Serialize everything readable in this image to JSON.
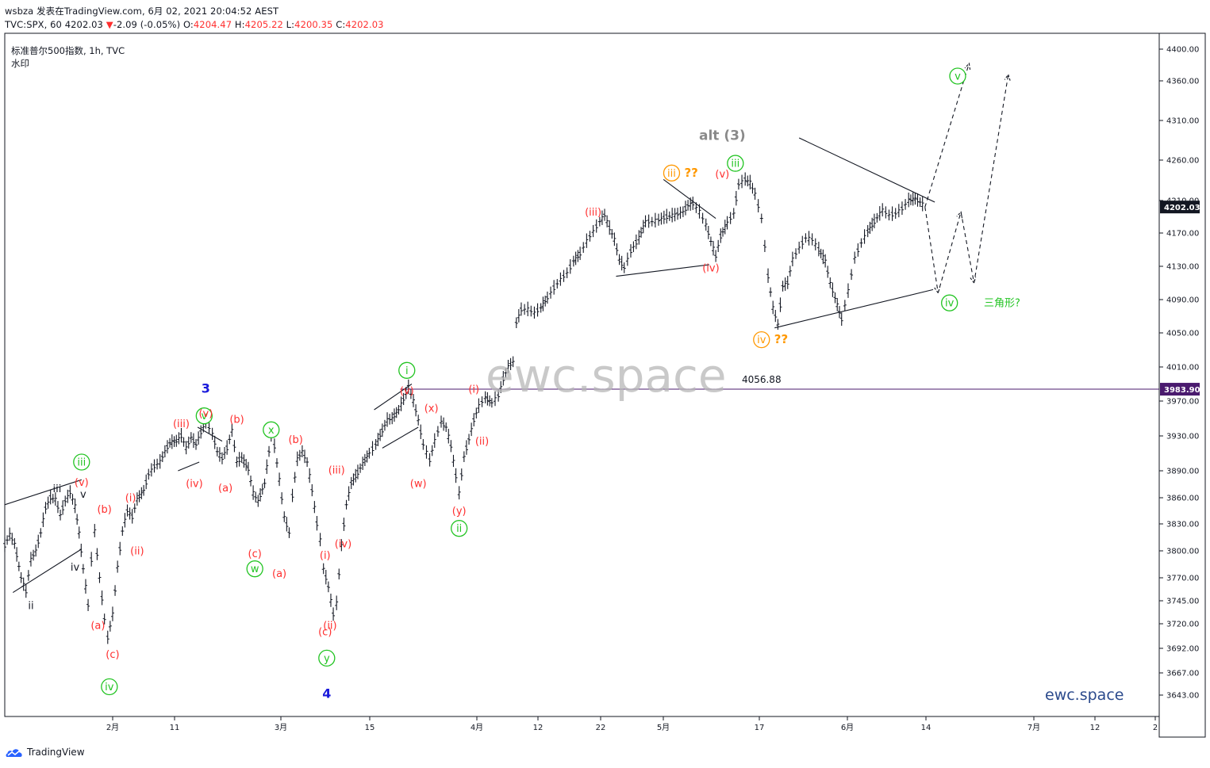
{
  "header": {
    "line1": "wsbza 发表在TradingView.com, 6月 02, 2021 20:04:52 AEST",
    "symbol": "TVC:SPX, 60",
    "last": "4202.03",
    "change": "-2.09 (-0.05%)",
    "o_label": "O:",
    "o_value": "4204.47",
    "h_label": "H:",
    "h_value": "4205.22",
    "l_label": "L:",
    "l_value": "4200.35",
    "c_label": "C:",
    "c_value": "4202.03"
  },
  "legend": {
    "title": "标准普尔500指数, 1h, TVC",
    "watermark_label": "水印"
  },
  "watermark": "ewc.space",
  "brand_text": "ewc.space",
  "footer": {
    "logo_text": "TradingView"
  },
  "colors": {
    "red": "#ff2e2e",
    "green": "#22c422",
    "orange": "#ff9800",
    "blue": "#1a1adb",
    "gray": "#8a8a8a",
    "candle": "#131722",
    "hline": "#4a1a6e"
  },
  "chart_data": {
    "type": "line",
    "title": "标准普尔500指数, 1h, TVC",
    "price_axis_ticks": [
      "4400.00",
      "4360.00",
      "4310.00",
      "4260.00",
      "4210.00",
      "4170.00",
      "4130.00",
      "4090.00",
      "4050.00",
      "4010.00",
      "3970.00",
      "3930.00",
      "3890.00",
      "3860.00",
      "3830.00",
      "3800.00",
      "3770.00",
      "3745.00",
      "3720.00",
      "3692.00",
      "3667.00",
      "3643.00"
    ],
    "price_axis_values": [
      4400,
      4360,
      4310,
      4260,
      4210,
      4170,
      4130,
      4090,
      4050,
      4010,
      3970,
      3930,
      3890,
      3860,
      3830,
      3800,
      3770,
      3745,
      3720,
      3692,
      3667,
      3643
    ],
    "time_axis_ticks": [
      "2月",
      "11",
      "3月",
      "15",
      "4月",
      "12",
      "22",
      "5月",
      "17",
      "6月",
      "14",
      "7月",
      "12",
      "2"
    ],
    "current_price_label": "4202.03",
    "current_price": 4202.03,
    "hline_label": "3983.90",
    "hline_price": 3983.9,
    "low_annotation": "4056.88",
    "low_price": 4056.88,
    "price_path": [
      [
        0.0,
        3806
      ],
      [
        0.6,
        3818
      ],
      [
        1.2,
        3808
      ],
      [
        2.0,
        3770
      ],
      [
        2.6,
        3755
      ],
      [
        3.2,
        3790
      ],
      [
        3.8,
        3800
      ],
      [
        4.4,
        3820
      ],
      [
        5.0,
        3848
      ],
      [
        5.6,
        3860
      ],
      [
        6.2,
        3858
      ],
      [
        6.8,
        3840
      ],
      [
        7.4,
        3856
      ],
      [
        8.0,
        3866
      ],
      [
        8.6,
        3850
      ],
      [
        9.1,
        3820
      ],
      [
        9.6,
        3780
      ],
      [
        10.2,
        3740
      ],
      [
        10.6,
        3790
      ],
      [
        11.0,
        3822
      ],
      [
        11.6,
        3770
      ],
      [
        12.2,
        3725
      ],
      [
        12.6,
        3704
      ],
      [
        13.2,
        3730
      ],
      [
        13.8,
        3782
      ],
      [
        14.4,
        3822
      ],
      [
        15.0,
        3845
      ],
      [
        15.6,
        3838
      ],
      [
        16.2,
        3858
      ],
      [
        17.0,
        3868
      ],
      [
        17.6,
        3886
      ],
      [
        18.3,
        3895
      ],
      [
        19.0,
        3900
      ],
      [
        19.6,
        3912
      ],
      [
        20.2,
        3922
      ],
      [
        21.0,
        3924
      ],
      [
        21.6,
        3930
      ],
      [
        22.2,
        3916
      ],
      [
        22.8,
        3928
      ],
      [
        23.4,
        3920
      ],
      [
        24.0,
        3934
      ],
      [
        24.6,
        3946
      ],
      [
        25.4,
        3932
      ],
      [
        26.0,
        3912
      ],
      [
        26.6,
        3904
      ],
      [
        27.2,
        3916
      ],
      [
        27.8,
        3936
      ],
      [
        28.4,
        3900
      ],
      [
        29.0,
        3905
      ],
      [
        29.8,
        3892
      ],
      [
        30.4,
        3865
      ],
      [
        31.0,
        3856
      ],
      [
        31.8,
        3876
      ],
      [
        32.6,
        3930
      ],
      [
        33.0,
        3918
      ],
      [
        33.6,
        3880
      ],
      [
        34.2,
        3838
      ],
      [
        34.8,
        3820
      ],
      [
        35.2,
        3862
      ],
      [
        35.8,
        3903
      ],
      [
        36.4,
        3912
      ],
      [
        37.0,
        3900
      ],
      [
        37.6,
        3868
      ],
      [
        38.2,
        3830
      ],
      [
        38.6,
        3812
      ],
      [
        39.0,
        3780
      ],
      [
        39.6,
        3760
      ],
      [
        40.2,
        3730
      ],
      [
        40.6,
        3742
      ],
      [
        41.2,
        3806
      ],
      [
        41.8,
        3852
      ],
      [
        42.4,
        3876
      ],
      [
        43.2,
        3888
      ],
      [
        43.8,
        3898
      ],
      [
        44.6,
        3910
      ],
      [
        45.4,
        3920
      ],
      [
        46.2,
        3936
      ],
      [
        46.8,
        3948
      ],
      [
        47.4,
        3950
      ],
      [
        48.2,
        3960
      ],
      [
        48.8,
        3972
      ],
      [
        49.4,
        3986
      ],
      [
        50.0,
        3970
      ],
      [
        50.6,
        3948
      ],
      [
        51.2,
        3920
      ],
      [
        52.0,
        3902
      ],
      [
        52.6,
        3924
      ],
      [
        53.4,
        3946
      ],
      [
        54.0,
        3940
      ],
      [
        54.6,
        3918
      ],
      [
        55.2,
        3884
      ],
      [
        55.6,
        3865
      ],
      [
        56.2,
        3906
      ],
      [
        56.8,
        3926
      ],
      [
        57.4,
        3948
      ],
      [
        58.0,
        3964
      ],
      [
        58.8,
        3974
      ],
      [
        59.6,
        3968
      ],
      [
        60.4,
        3976
      ],
      [
        61.0,
        3996
      ],
      [
        61.6,
        4010
      ],
      [
        62.2,
        4016
      ],
      [
        62.6,
        4062
      ],
      [
        63.2,
        4078
      ],
      [
        64.0,
        4078
      ],
      [
        64.8,
        4074
      ],
      [
        65.6,
        4080
      ],
      [
        66.4,
        4092
      ],
      [
        67.2,
        4104
      ],
      [
        68.0,
        4114
      ],
      [
        68.8,
        4122
      ],
      [
        69.6,
        4136
      ],
      [
        70.4,
        4145
      ],
      [
        71.2,
        4160
      ],
      [
        72.0,
        4172
      ],
      [
        72.8,
        4184
      ],
      [
        73.4,
        4192
      ],
      [
        74.0,
        4176
      ],
      [
        74.6,
        4162
      ],
      [
        75.2,
        4138
      ],
      [
        75.8,
        4128
      ],
      [
        76.6,
        4148
      ],
      [
        77.6,
        4164
      ],
      [
        78.4,
        4184
      ],
      [
        79.2,
        4184
      ],
      [
        80.0,
        4186
      ],
      [
        81.0,
        4190
      ],
      [
        82.0,
        4192
      ],
      [
        83.0,
        4196
      ],
      [
        83.6,
        4204
      ],
      [
        84.2,
        4206
      ],
      [
        85.0,
        4196
      ],
      [
        85.8,
        4180
      ],
      [
        86.4,
        4160
      ],
      [
        87.0,
        4142
      ],
      [
        87.6,
        4166
      ],
      [
        88.4,
        4182
      ],
      [
        89.2,
        4194
      ],
      [
        89.8,
        4230
      ],
      [
        90.6,
        4236
      ],
      [
        91.2,
        4232
      ],
      [
        91.8,
        4218
      ],
      [
        92.6,
        4188
      ],
      [
        93.0,
        4154
      ],
      [
        93.4,
        4118
      ],
      [
        94.0,
        4080
      ],
      [
        94.6,
        4060
      ],
      [
        95.2,
        4106
      ],
      [
        95.8,
        4110
      ],
      [
        96.4,
        4138
      ],
      [
        97.2,
        4152
      ],
      [
        98.0,
        4164
      ],
      [
        98.8,
        4162
      ],
      [
        99.6,
        4150
      ],
      [
        100.4,
        4136
      ],
      [
        101.0,
        4110
      ],
      [
        101.6,
        4092
      ],
      [
        102.4,
        4066
      ],
      [
        103.2,
        4100
      ],
      [
        104.0,
        4140
      ],
      [
        104.8,
        4158
      ],
      [
        105.6,
        4172
      ],
      [
        106.4,
        4184
      ],
      [
        107.4,
        4198
      ],
      [
        108.2,
        4192
      ],
      [
        109.0,
        4194
      ],
      [
        109.8,
        4200
      ],
      [
        110.6,
        4210
      ],
      [
        111.4,
        4212
      ],
      [
        112.0,
        4208
      ],
      [
        112.6,
        4202
      ]
    ],
    "projection_paths": [
      [
        [
          112.6,
          4202
        ],
        [
          118.0,
          4382
        ]
      ],
      [
        [
          112.6,
          4202
        ],
        [
          114.2,
          4098
        ],
        [
          117.0,
          4196
        ],
        [
          118.6,
          4110
        ],
        [
          122.8,
          4368
        ]
      ]
    ],
    "trendlines": [
      [
        [
          0.0,
          3852
        ],
        [
          9.4,
          3880
        ]
      ],
      [
        [
          1.0,
          3754
        ],
        [
          9.4,
          3802
        ]
      ],
      [
        [
          23.6,
          3940
        ],
        [
          26.6,
          3924
        ]
      ],
      [
        [
          21.2,
          3890
        ],
        [
          23.8,
          3900
        ]
      ],
      [
        [
          45.2,
          3960
        ],
        [
          49.8,
          3990
        ]
      ],
      [
        [
          46.2,
          3916
        ],
        [
          50.6,
          3940
        ]
      ],
      [
        [
          80.6,
          4236
        ],
        [
          87.0,
          4188
        ]
      ],
      [
        [
          74.8,
          4118
        ],
        [
          86.2,
          4132
        ]
      ],
      [
        [
          97.2,
          4288
        ],
        [
          113.8,
          4208
        ]
      ],
      [
        [
          94.2,
          4056
        ],
        [
          113.6,
          4102
        ]
      ]
    ],
    "wave_labels": [
      {
        "text": "3",
        "style": "blue",
        "x": 24.6,
        "price": 3984
      },
      {
        "text": "4",
        "style": "blue",
        "x": 39.4,
        "price": 3644
      },
      {
        "text": "alt (3)",
        "style": "gray",
        "x": 87.8,
        "price": 4290
      },
      {
        "text": "iii",
        "style": "circle-green",
        "x": 9.4,
        "price": 3900
      },
      {
        "text": "iv",
        "style": "circle-green",
        "x": 12.8,
        "price": 3652
      },
      {
        "text": "v",
        "style": "circle-green",
        "x": 24.4,
        "price": 3953
      },
      {
        "text": "x",
        "style": "circle-green",
        "x": 32.6,
        "price": 3937
      },
      {
        "text": "w",
        "style": "circle-green",
        "x": 30.6,
        "price": 3780
      },
      {
        "text": "y",
        "style": "circle-green",
        "x": 39.4,
        "price": 3682
      },
      {
        "text": "i",
        "style": "circle-green",
        "x": 49.2,
        "price": 4006
      },
      {
        "text": "ii",
        "style": "circle-green",
        "x": 55.6,
        "price": 3825
      },
      {
        "text": "iii",
        "style": "circle-green",
        "x": 89.4,
        "price": 4256
      },
      {
        "text": "v",
        "style": "circle-green",
        "x": 116.6,
        "price": 4366
      },
      {
        "text": "iv",
        "style": "circle-green",
        "x": 115.6,
        "price": 4086
      },
      {
        "text": "iii",
        "style": "circle-orange",
        "x": 81.6,
        "price": 4244
      },
      {
        "text": "iv",
        "style": "circle-orange",
        "x": 92.6,
        "price": 4042
      },
      {
        "text": "??",
        "style": "orange",
        "x": 84.0,
        "price": 4244
      },
      {
        "text": "??",
        "style": "orange",
        "x": 95.0,
        "price": 4042
      },
      {
        "text": "(v)",
        "style": "red",
        "x": 9.4,
        "price": 3877
      },
      {
        "text": "(b)",
        "style": "red",
        "x": 12.2,
        "price": 3847
      },
      {
        "text": "(a)",
        "style": "red",
        "x": 11.4,
        "price": 3718
      },
      {
        "text": "(c)",
        "style": "red",
        "x": 13.2,
        "price": 3686
      },
      {
        "text": "(i)",
        "style": "red",
        "x": 15.4,
        "price": 3860
      },
      {
        "text": "(ii)",
        "style": "red",
        "x": 16.2,
        "price": 3800
      },
      {
        "text": "(iii)",
        "style": "red",
        "x": 21.6,
        "price": 3944
      },
      {
        "text": "(iv)",
        "style": "red",
        "x": 23.2,
        "price": 3876
      },
      {
        "text": "(v)",
        "style": "red",
        "x": 24.6,
        "price": 3956
      },
      {
        "text": "(b)",
        "style": "red",
        "x": 28.4,
        "price": 3949
      },
      {
        "text": "(a)",
        "style": "red",
        "x": 27.0,
        "price": 3871
      },
      {
        "text": "(c)",
        "style": "red",
        "x": 30.6,
        "price": 3797
      },
      {
        "text": "(b)",
        "style": "red",
        "x": 35.6,
        "price": 3926
      },
      {
        "text": "(a)",
        "style": "red",
        "x": 33.6,
        "price": 3775
      },
      {
        "text": "(iii)",
        "style": "red",
        "x": 40.6,
        "price": 3891
      },
      {
        "text": "(iv)",
        "style": "red",
        "x": 41.4,
        "price": 3808
      },
      {
        "text": "(i)",
        "style": "red",
        "x": 39.2,
        "price": 3795
      },
      {
        "text": "(ii)",
        "style": "red",
        "x": 39.8,
        "price": 3718
      },
      {
        "text": "(c)",
        "style": "red",
        "x": 39.2,
        "price": 3711
      },
      {
        "text": "(v)",
        "style": "red",
        "x": 49.2,
        "price": 3982
      },
      {
        "text": "(x)",
        "style": "red",
        "x": 52.2,
        "price": 3962
      },
      {
        "text": "(w)",
        "style": "red",
        "x": 50.6,
        "price": 3876
      },
      {
        "text": "(y)",
        "style": "red",
        "x": 55.6,
        "price": 3845
      },
      {
        "text": "(i)",
        "style": "red",
        "x": 57.4,
        "price": 3984
      },
      {
        "text": "(ii)",
        "style": "red",
        "x": 58.4,
        "price": 3924
      },
      {
        "text": "(iii)",
        "style": "red",
        "x": 72.0,
        "price": 4196
      },
      {
        "text": "(iv)",
        "style": "red",
        "x": 86.4,
        "price": 4128
      },
      {
        "text": "(v)",
        "style": "red",
        "x": 87.8,
        "price": 4243
      },
      {
        "text": "iii",
        "style": "black",
        "x": 6.4,
        "price": 3870
      },
      {
        "text": "v",
        "style": "black",
        "x": 9.6,
        "price": 3864
      },
      {
        "text": "ii",
        "style": "black",
        "x": 3.2,
        "price": 3740
      },
      {
        "text": "iv",
        "style": "black",
        "x": 8.6,
        "price": 3782
      },
      {
        "text": "三角形?",
        "style": "green",
        "x": 119.8,
        "price": 4086
      }
    ]
  }
}
